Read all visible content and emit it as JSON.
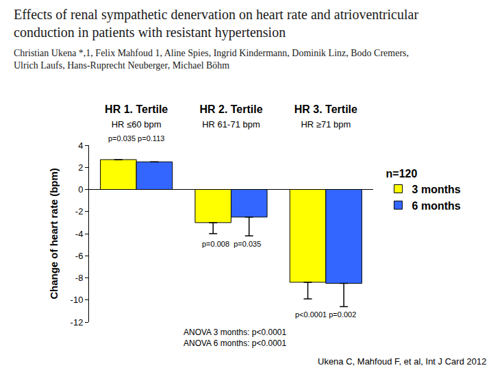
{
  "chart_data": {
    "type": "bar",
    "title": "Effects of renal sympathetic denervation on heart rate and atrioventricular conduction in patients with resistant hypertension",
    "authors": "Christian Ukena *,1, Felix Mahfoud 1, Aline Spies, Ingrid Kindermann, Dominik Linz, Bodo Cremers, Ulrich Laufs, Hans-Ruprecht Neuberger, Michael Böhm",
    "ylabel": "Change of heart rate (bpm)",
    "categories": [
      "HR 1. Tertile",
      "HR 2. Tertile",
      "HR 3. Tertile"
    ],
    "category_sublabels": [
      "HR ≤60 bpm",
      "HR 61-71 bpm",
      "HR ≥71 bpm"
    ],
    "series": [
      {
        "name": "3 months",
        "color": "#ffff00",
        "values": [
          2.7,
          -3.0,
          -8.4
        ],
        "errors_minus": [
          null,
          1.0,
          1.5
        ]
      },
      {
        "name": "6 months",
        "color": "#3366ff",
        "values": [
          2.5,
          -2.5,
          -8.5
        ],
        "errors_minus": [
          null,
          1.7,
          2.1
        ]
      }
    ],
    "ylim": [
      -12,
      4
    ],
    "yticks": [
      -12,
      -10,
      -8,
      -6,
      -4,
      -2,
      0,
      2,
      4
    ],
    "grid": false,
    "legend": "right",
    "legend_title": "n=120",
    "annotations": [
      {
        "category": "HR 1. Tertile",
        "text": "p=0.035 p=0.113"
      },
      {
        "category": "HR 2. Tertile",
        "text": "p=0.008  p=0.035"
      },
      {
        "category": "HR 3. Tertile",
        "text": "p<0.0001 p=0.002"
      }
    ],
    "notes": [
      "ANOVA 3 months: p<0.0001",
      "ANOVA 6 months: p<0.0001"
    ],
    "source": "Ukena C, Mahfoud F, et al, Int J Card 2012"
  }
}
